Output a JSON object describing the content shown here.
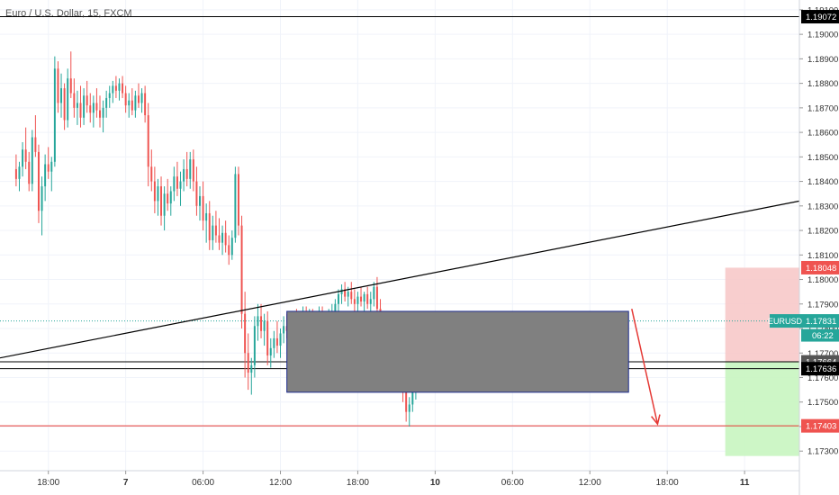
{
  "symbol_title": "Euro / U.S. Dollar, 15, FXCM",
  "price_tag_label": "EURUSD",
  "countdown": "06:22",
  "colors": {
    "up": "#26a69a",
    "down": "#ef5350",
    "grid": "#f0f3fa",
    "axis_text": "#333333",
    "trendline": "#000000",
    "box_fill": "#808080",
    "box_border": "#1c2a8c",
    "stop_zone": "#f7c5c5",
    "target_zone": "#c8f5c0",
    "current_price": "#26a69a",
    "target_line": "#e53935"
  },
  "chart_data": {
    "type": "candlestick",
    "title": "Euro / U.S. Dollar, 15, FXCM",
    "ylim": [
      1.1722,
      1.1914
    ],
    "y_ticks": [
      "1.19100",
      "1.19000",
      "1.18900",
      "1.18800",
      "1.18700",
      "1.18600",
      "1.18500",
      "1.18400",
      "1.18300",
      "1.18200",
      "1.18100",
      "1.18000",
      "1.17900",
      "1.17800",
      "1.17700",
      "1.17600",
      "1.17500",
      "1.17400",
      "1.17300"
    ],
    "x_ticks": [
      {
        "label": "18:00",
        "t": 10
      },
      {
        "label": "7",
        "t": 34
      },
      {
        "label": "06:00",
        "t": 58
      },
      {
        "label": "12:00",
        "t": 82
      },
      {
        "label": "18:00",
        "t": 106
      },
      {
        "label": "10",
        "t": 130
      },
      {
        "label": "06:00",
        "t": 154
      },
      {
        "label": "12:00",
        "t": 178
      },
      {
        "label": "18:00",
        "t": 202
      },
      {
        "label": "11",
        "t": 226
      }
    ],
    "x_range": [
      -5,
      243
    ],
    "price_levels": [
      {
        "name": "top-level",
        "value": "1.19072",
        "color": "#000000",
        "label_bg": "#000000"
      },
      {
        "name": "stop-level",
        "value": "1.18048",
        "color": "#f7c5c5",
        "label_bg": "#ef5350"
      },
      {
        "name": "current-price",
        "value": "1.17831",
        "color": "#26a69a",
        "label_bg": "#26a69a"
      },
      {
        "name": "entry-level",
        "value": "1.17664",
        "color": "#000000",
        "label_bg": "#555555"
      },
      {
        "name": "support-level",
        "value": "1.17636",
        "color": "#000000",
        "label_bg": "#000000"
      },
      {
        "name": "target-level",
        "value": "1.17403",
        "color": "#e53935",
        "label_bg": "#ef5350"
      }
    ],
    "trendline": {
      "t1": -5,
      "p1": 1.1768,
      "t2": 243,
      "p2": 1.1832
    },
    "range_box": {
      "t1": 84,
      "t2": 190,
      "p_top": 1.1787,
      "p_bottom": 1.1754
    },
    "position_tool": {
      "t1": 220,
      "t2": 243,
      "stop": 1.18048,
      "entry": 1.17664,
      "target": 1.1728
    },
    "arrow": {
      "t1": 191,
      "p1": 1.1788,
      "t2": 199,
      "p2": 1.1741
    },
    "candles": [
      [
        1.1845,
        1.1851,
        1.1838,
        1.1841
      ],
      [
        1.1841,
        1.1848,
        1.1836,
        1.1846
      ],
      [
        1.1846,
        1.1856,
        1.1842,
        1.1853
      ],
      [
        1.1853,
        1.1862,
        1.1845,
        1.1848
      ],
      [
        1.1848,
        1.1852,
        1.1836,
        1.1839
      ],
      [
        1.1839,
        1.1861,
        1.1836,
        1.1858
      ],
      [
        1.1858,
        1.1867,
        1.185,
        1.1852
      ],
      [
        1.1852,
        1.1855,
        1.1823,
        1.1828
      ],
      [
        1.1828,
        1.1842,
        1.1818,
        1.1838
      ],
      [
        1.1838,
        1.1851,
        1.1832,
        1.1847
      ],
      [
        1.1847,
        1.1854,
        1.1841,
        1.1844
      ],
      [
        1.1844,
        1.185,
        1.1836,
        1.1848
      ],
      [
        1.1848,
        1.1891,
        1.1846,
        1.1886
      ],
      [
        1.1886,
        1.1889,
        1.1868,
        1.1872
      ],
      [
        1.1872,
        1.1884,
        1.1866,
        1.1878
      ],
      [
        1.1878,
        1.188,
        1.1861,
        1.1865
      ],
      [
        1.1865,
        1.1886,
        1.1862,
        1.1882
      ],
      [
        1.1882,
        1.1893,
        1.1874,
        1.1876
      ],
      [
        1.1876,
        1.1882,
        1.1866,
        1.187
      ],
      [
        1.187,
        1.1877,
        1.1863,
        1.1872
      ],
      [
        1.1872,
        1.1879,
        1.1862,
        1.1866
      ],
      [
        1.1866,
        1.1878,
        1.1863,
        1.1875
      ],
      [
        1.1875,
        1.1881,
        1.1868,
        1.1871
      ],
      [
        1.1871,
        1.1876,
        1.1864,
        1.1868
      ],
      [
        1.1868,
        1.1875,
        1.1862,
        1.1872
      ],
      [
        1.1872,
        1.1878,
        1.1866,
        1.1869
      ],
      [
        1.1869,
        1.1875,
        1.1862,
        1.1866
      ],
      [
        1.1866,
        1.1873,
        1.186,
        1.187
      ],
      [
        1.187,
        1.1877,
        1.1866,
        1.1874
      ],
      [
        1.1874,
        1.1879,
        1.187,
        1.1876
      ],
      [
        1.1876,
        1.1881,
        1.1872,
        1.1879
      ],
      [
        1.1879,
        1.1883,
        1.1874,
        1.1877
      ],
      [
        1.1877,
        1.1882,
        1.1873,
        1.188
      ],
      [
        1.188,
        1.1883,
        1.1874,
        1.1876
      ],
      [
        1.1876,
        1.1879,
        1.1868,
        1.1871
      ],
      [
        1.1871,
        1.1876,
        1.1866,
        1.1873
      ],
      [
        1.1873,
        1.1878,
        1.1867,
        1.1869
      ],
      [
        1.1869,
        1.1877,
        1.1866,
        1.1875
      ],
      [
        1.1875,
        1.188,
        1.187,
        1.1872
      ],
      [
        1.1872,
        1.1878,
        1.1868,
        1.1876
      ],
      [
        1.1876,
        1.1879,
        1.1864,
        1.1867
      ],
      [
        1.1867,
        1.1872,
        1.1838,
        1.1846
      ],
      [
        1.1846,
        1.1853,
        1.1836,
        1.184
      ],
      [
        1.184,
        1.1846,
        1.1827,
        1.1832
      ],
      [
        1.1832,
        1.1841,
        1.1826,
        1.1838
      ],
      [
        1.1838,
        1.1842,
        1.1822,
        1.1826
      ],
      [
        1.1826,
        1.1838,
        1.182,
        1.1835
      ],
      [
        1.1835,
        1.1841,
        1.1828,
        1.1831
      ],
      [
        1.1831,
        1.1838,
        1.1826,
        1.1836
      ],
      [
        1.1836,
        1.1846,
        1.1832,
        1.1842
      ],
      [
        1.1842,
        1.1848,
        1.1834,
        1.1837
      ],
      [
        1.1837,
        1.1844,
        1.183,
        1.184
      ],
      [
        1.184,
        1.1849,
        1.1836,
        1.1845
      ],
      [
        1.1845,
        1.1852,
        1.1838,
        1.1841
      ],
      [
        1.1841,
        1.1852,
        1.1837,
        1.1849
      ],
      [
        1.1849,
        1.1853,
        1.1836,
        1.184
      ],
      [
        1.184,
        1.1846,
        1.1826,
        1.183
      ],
      [
        1.183,
        1.1838,
        1.1824,
        1.1834
      ],
      [
        1.1834,
        1.184,
        1.182,
        1.1824
      ],
      [
        1.1824,
        1.1831,
        1.1815,
        1.1827
      ],
      [
        1.1827,
        1.1832,
        1.1812,
        1.1816
      ],
      [
        1.1816,
        1.1826,
        1.1812,
        1.1822
      ],
      [
        1.1822,
        1.1828,
        1.1815,
        1.1818
      ],
      [
        1.1818,
        1.1825,
        1.1812,
        1.1815
      ],
      [
        1.1815,
        1.1822,
        1.181,
        1.1819
      ],
      [
        1.1819,
        1.1824,
        1.1811,
        1.1814
      ],
      [
        1.1814,
        1.1818,
        1.1806,
        1.181
      ],
      [
        1.181,
        1.182,
        1.1808,
        1.1817
      ],
      [
        1.1817,
        1.1846,
        1.1815,
        1.1843
      ],
      [
        1.1843,
        1.1846,
        1.1818,
        1.1822
      ],
      [
        1.1822,
        1.1826,
        1.178,
        1.1786
      ],
      [
        1.1786,
        1.1795,
        1.176,
        1.177
      ],
      [
        1.177,
        1.1778,
        1.1755,
        1.1762
      ],
      [
        1.1762,
        1.1768,
        1.1753,
        1.1765
      ],
      [
        1.1765,
        1.1785,
        1.176,
        1.1781
      ],
      [
        1.1781,
        1.179,
        1.1775,
        1.1785
      ],
      [
        1.1785,
        1.179,
        1.1776,
        1.1779
      ],
      [
        1.1779,
        1.1786,
        1.1773,
        1.1783
      ],
      [
        1.1783,
        1.1787,
        1.1765,
        1.1769
      ],
      [
        1.1769,
        1.1776,
        1.1764,
        1.1772
      ],
      [
        1.1772,
        1.1779,
        1.1768,
        1.1776
      ],
      [
        1.1776,
        1.1783,
        1.177,
        1.1773
      ],
      [
        1.1773,
        1.178,
        1.1768,
        1.1778
      ],
      [
        1.1778,
        1.1785,
        1.1774,
        1.1781
      ],
      [
        1.1781,
        1.1786,
        1.1776,
        1.1779
      ],
      [
        1.1779,
        1.1784,
        1.1773,
        1.1782
      ],
      [
        1.1782,
        1.1787,
        1.1778,
        1.1784
      ],
      [
        1.1784,
        1.1788,
        1.1779,
        1.1781
      ],
      [
        1.1781,
        1.1786,
        1.1776,
        1.1784
      ],
      [
        1.1784,
        1.1789,
        1.178,
        1.1786
      ],
      [
        1.1786,
        1.1789,
        1.1781,
        1.1783
      ],
      [
        1.1783,
        1.1788,
        1.1779,
        1.1785
      ],
      [
        1.1785,
        1.1788,
        1.1778,
        1.178
      ],
      [
        1.178,
        1.1787,
        1.1776,
        1.1784
      ],
      [
        1.1784,
        1.1789,
        1.178,
        1.1786
      ],
      [
        1.1786,
        1.1789,
        1.1777,
        1.1781
      ],
      [
        1.1781,
        1.1785,
        1.1776,
        1.1783
      ],
      [
        1.1783,
        1.1788,
        1.178,
        1.1785
      ],
      [
        1.1785,
        1.179,
        1.1781,
        1.1787
      ],
      [
        1.1787,
        1.1792,
        1.1784,
        1.179
      ],
      [
        1.179,
        1.1796,
        1.1787,
        1.1794
      ],
      [
        1.1794,
        1.1798,
        1.179,
        1.1796
      ],
      [
        1.1796,
        1.1799,
        1.1791,
        1.1793
      ],
      [
        1.1793,
        1.1797,
        1.1789,
        1.1795
      ],
      [
        1.1795,
        1.1799,
        1.179,
        1.1792
      ],
      [
        1.1792,
        1.1796,
        1.1787,
        1.179
      ],
      [
        1.179,
        1.1795,
        1.1786,
        1.1793
      ],
      [
        1.1793,
        1.1797,
        1.1789,
        1.1791
      ],
      [
        1.1791,
        1.1795,
        1.1786,
        1.1794
      ],
      [
        1.1794,
        1.1797,
        1.1788,
        1.179
      ],
      [
        1.179,
        1.1795,
        1.1786,
        1.1792
      ],
      [
        1.1792,
        1.1799,
        1.1789,
        1.1797
      ],
      [
        1.1797,
        1.1801,
        1.1785,
        1.1788
      ],
      [
        1.1788,
        1.1792,
        1.177,
        1.1774
      ],
      [
        1.1774,
        1.1779,
        1.176,
        1.1765
      ],
      [
        1.1765,
        1.1772,
        1.1757,
        1.1768
      ],
      [
        1.1768,
        1.1774,
        1.176,
        1.1763
      ],
      [
        1.1763,
        1.177,
        1.1755,
        1.1766
      ],
      [
        1.1766,
        1.1772,
        1.1758,
        1.1761
      ],
      [
        1.1761,
        1.1768,
        1.1755,
        1.1764
      ],
      [
        1.1764,
        1.1768,
        1.175,
        1.1754
      ],
      [
        1.1754,
        1.176,
        1.1742,
        1.1746
      ],
      [
        1.1746,
        1.1752,
        1.174,
        1.1749
      ],
      [
        1.1749,
        1.1758,
        1.1746,
        1.1755
      ],
      [
        1.1755,
        1.1762,
        1.1751,
        1.1759
      ],
      [
        1.1759,
        1.1766,
        1.1755,
        1.1763
      ],
      [
        1.1763,
        1.1785,
        1.176,
        1.1783
      ]
    ]
  }
}
